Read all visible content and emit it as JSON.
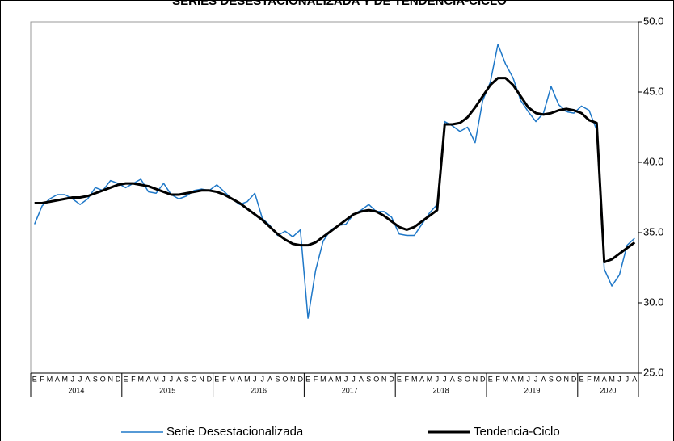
{
  "chart_data": {
    "type": "line",
    "title": "SERIES DESESTACIONALIZADA Y DE TENDENCIA-CICLO",
    "categories": [
      "E",
      "F",
      "M",
      "A",
      "M",
      "J",
      "J",
      "A",
      "S",
      "O",
      "N",
      "D",
      "E",
      "F",
      "M",
      "A",
      "M",
      "J",
      "J",
      "A",
      "S",
      "O",
      "N",
      "D",
      "E",
      "F",
      "M",
      "A",
      "M",
      "J",
      "J",
      "A",
      "S",
      "O",
      "N",
      "D",
      "E",
      "F",
      "M",
      "A",
      "M",
      "J",
      "J",
      "A",
      "S",
      "O",
      "N",
      "D",
      "E",
      "F",
      "M",
      "A",
      "M",
      "J",
      "J",
      "A",
      "S",
      "O",
      "N",
      "D",
      "E",
      "F",
      "M",
      "A",
      "M",
      "J",
      "J",
      "A",
      "S",
      "O",
      "N",
      "D",
      "E",
      "F",
      "M",
      "A",
      "M",
      "J",
      "J",
      "A"
    ],
    "years": [
      "2014",
      "2015",
      "2016",
      "2017",
      "2018",
      "2019",
      "2020"
    ],
    "series": [
      {
        "name": "Serie Desestacionalizada",
        "color": "#1f78c8",
        "width": 1.5,
        "values": [
          35.6,
          36.9,
          37.4,
          37.7,
          37.7,
          37.4,
          37.0,
          37.4,
          38.2,
          38.0,
          38.7,
          38.5,
          38.2,
          38.5,
          38.8,
          37.9,
          37.8,
          38.5,
          37.7,
          37.4,
          37.6,
          38.0,
          38.1,
          38.0,
          38.4,
          37.9,
          37.4,
          37.0,
          37.2,
          37.8,
          36.0,
          35.5,
          34.8,
          35.1,
          34.7,
          35.2,
          28.9,
          32.3,
          34.4,
          35.2,
          35.5,
          35.6,
          36.3,
          36.6,
          37.0,
          36.5,
          36.5,
          36.1,
          34.9,
          34.8,
          34.8,
          35.6,
          36.4,
          37.0,
          42.9,
          42.6,
          42.2,
          42.5,
          41.4,
          44.4,
          45.7,
          48.4,
          47.0,
          46.0,
          44.4,
          43.6,
          42.9,
          43.5,
          45.4,
          44.1,
          43.6,
          43.5,
          44.0,
          43.7,
          42.3,
          32.4,
          31.2,
          32.0,
          34.1,
          34.6
        ]
      },
      {
        "name": "Tendencia-Ciclo",
        "color": "#000000",
        "width": 3,
        "values": [
          37.1,
          37.1,
          37.2,
          37.3,
          37.4,
          37.5,
          37.5,
          37.6,
          37.8,
          38.0,
          38.2,
          38.4,
          38.5,
          38.5,
          38.4,
          38.3,
          38.1,
          37.9,
          37.7,
          37.7,
          37.8,
          37.9,
          38.0,
          38.0,
          37.9,
          37.7,
          37.4,
          37.1,
          36.7,
          36.3,
          35.9,
          35.4,
          34.9,
          34.5,
          34.2,
          34.1,
          34.1,
          34.3,
          34.7,
          35.1,
          35.5,
          35.9,
          36.3,
          36.5,
          36.6,
          36.5,
          36.2,
          35.8,
          35.4,
          35.2,
          35.4,
          35.8,
          36.2,
          36.6,
          42.7,
          42.7,
          42.8,
          43.2,
          43.9,
          44.7,
          45.5,
          46.0,
          46.0,
          45.5,
          44.7,
          43.9,
          43.5,
          43.4,
          43.5,
          43.7,
          43.8,
          43.7,
          43.5,
          43.0,
          42.8,
          32.9,
          33.1,
          33.5,
          33.9,
          34.3
        ]
      }
    ],
    "ylim": [
      25,
      50
    ],
    "yticks": [
      {
        "value": 25,
        "label": "25.0"
      },
      {
        "value": 30,
        "label": "30.0"
      },
      {
        "value": 35,
        "label": "35.0"
      },
      {
        "value": 40,
        "label": "40.0"
      },
      {
        "value": 45,
        "label": "45.0"
      },
      {
        "value": 50,
        "label": "50.0"
      }
    ],
    "y_axis_side": "right",
    "grid": false
  }
}
